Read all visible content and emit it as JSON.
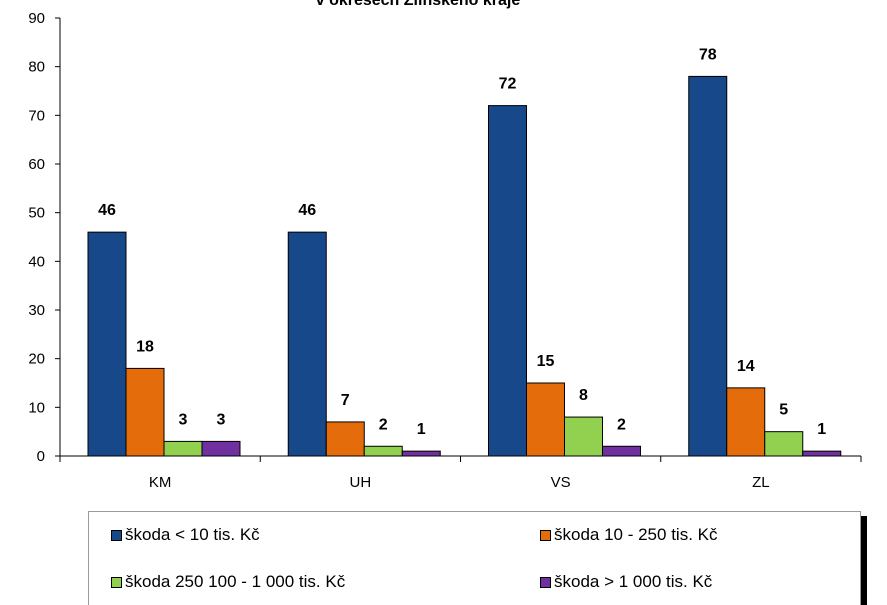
{
  "chart_data": {
    "type": "bar",
    "title": "v okresech Zlínského kraje",
    "categories": [
      "KM",
      "UH",
      "VS",
      "ZL"
    ],
    "ylim": [
      0,
      90
    ],
    "yticks": [
      0,
      10,
      20,
      30,
      40,
      50,
      60,
      70,
      80,
      90
    ],
    "grid": false,
    "legend_position": "bottom",
    "series": [
      {
        "name": "škoda < 10 tis. Kč",
        "color": "#17488a",
        "values": [
          46,
          46,
          72,
          78
        ]
      },
      {
        "name": "škoda 10 - 250 tis. Kč",
        "color": "#e46c0a",
        "values": [
          18,
          7,
          15,
          14
        ]
      },
      {
        "name": "škoda 250 100 - 1 000 tis. Kč",
        "color": "#92d050",
        "values": [
          3,
          2,
          8,
          5
        ]
      },
      {
        "name": "škoda > 1 000 tis. Kč",
        "color": "#7030a0",
        "values": [
          3,
          1,
          2,
          1
        ]
      }
    ]
  }
}
